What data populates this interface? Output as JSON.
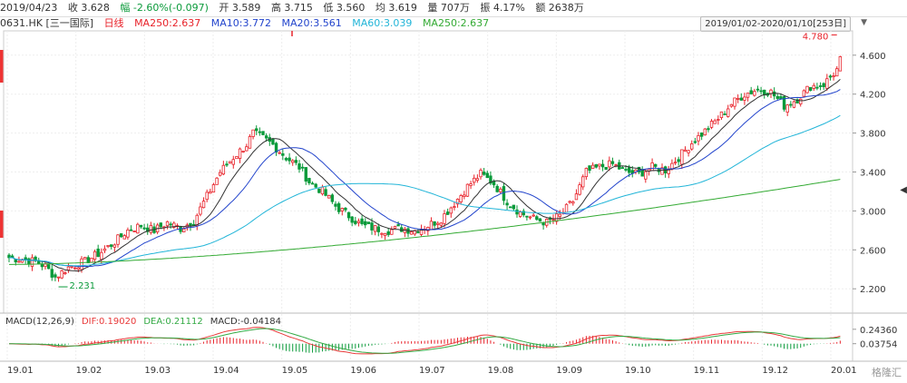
{
  "topbar": {
    "date": "2019/04/23",
    "close": "收 3.628",
    "change": "幅 -2.60%(-0.097)",
    "open": "开 3.589",
    "high": "高 3.715",
    "low": "低 3.560",
    "avg": "均 3.619",
    "volume": "量 707万",
    "amplitude": "振 4.17%",
    "turnover": "额 2638万"
  },
  "legend": {
    "code": "0631.HK [三一国际]",
    "period": "日线",
    "ma250a": "MA250:2.637",
    "ma10": "MA10:3.772",
    "ma20": "MA20:3.561",
    "ma60": "MA60:3.039",
    "ma250": "MA250:2.637"
  },
  "range": "2019/01/02-2020/01/10[253日]",
  "macd_legend": {
    "name": "MACD(12,26,9)",
    "dif": "DIF:0.19020",
    "dea": "DEA:0.21112",
    "macd": "MACD:-0.04184"
  },
  "watermark": "格隆汇",
  "colors": {
    "up": "#e8222a",
    "down": "#0a9a3a",
    "ma10": "#333333",
    "ma20": "#2244cc",
    "ma60": "#22b5d8",
    "ma250": "#33aa33",
    "dif": "#e83a3a",
    "dea": "#33aa44"
  },
  "chart_data": {
    "type": "candlestick",
    "ylim": [
      1.95,
      4.85
    ],
    "y_ticks": [
      "4.600",
      "4.200",
      "3.800",
      "3.400",
      "3.000",
      "2.600",
      "2.200"
    ],
    "x_ticks": [
      "19.01",
      "19.02",
      "19.03",
      "19.04",
      "19.05",
      "19.06",
      "19.07",
      "19.08",
      "19.09",
      "19.10",
      "19.11",
      "19.12",
      "20.01"
    ],
    "annotations": {
      "high": "4.780",
      "low": "2.231"
    },
    "close_path": [
      [
        0,
        2.52
      ],
      [
        4,
        2.5
      ],
      [
        8,
        2.48
      ],
      [
        11,
        2.43
      ],
      [
        14,
        2.32
      ],
      [
        18,
        2.42
      ],
      [
        23,
        2.48
      ],
      [
        28,
        2.58
      ],
      [
        32,
        2.68
      ],
      [
        36,
        2.8
      ],
      [
        40,
        2.85
      ],
      [
        44,
        2.8
      ],
      [
        48,
        2.88
      ],
      [
        52,
        2.82
      ],
      [
        56,
        2.9
      ],
      [
        60,
        3.15
      ],
      [
        64,
        3.4
      ],
      [
        68,
        3.55
      ],
      [
        72,
        3.68
      ],
      [
        74,
        3.8
      ],
      [
        77,
        3.75
      ],
      [
        80,
        3.68
      ],
      [
        84,
        3.55
      ],
      [
        88,
        3.45
      ],
      [
        91,
        3.3
      ],
      [
        95,
        3.2
      ],
      [
        99,
        3.05
      ],
      [
        103,
        2.95
      ],
      [
        107,
        2.85
      ],
      [
        111,
        2.82
      ],
      [
        115,
        2.8
      ],
      [
        119,
        2.82
      ],
      [
        123,
        2.8
      ],
      [
        127,
        2.85
      ],
      [
        131,
        2.92
      ],
      [
        135,
        3.08
      ],
      [
        139,
        3.25
      ],
      [
        143,
        3.38
      ],
      [
        147,
        3.28
      ],
      [
        151,
        3.1
      ],
      [
        155,
        2.98
      ],
      [
        159,
        2.92
      ],
      [
        163,
        2.88
      ],
      [
        167,
        2.95
      ],
      [
        171,
        3.1
      ],
      [
        175,
        3.4
      ],
      [
        179,
        3.45
      ],
      [
        183,
        3.48
      ],
      [
        187,
        3.4
      ],
      [
        191,
        3.38
      ],
      [
        195,
        3.45
      ],
      [
        199,
        3.42
      ],
      [
        203,
        3.55
      ],
      [
        207,
        3.7
      ],
      [
        211,
        3.82
      ],
      [
        215,
        3.95
      ],
      [
        219,
        4.1
      ],
      [
        223,
        4.2
      ],
      [
        227,
        4.25
      ],
      [
        231,
        4.22
      ],
      [
        235,
        4.08
      ],
      [
        239,
        4.15
      ],
      [
        243,
        4.28
      ],
      [
        247,
        4.3
      ],
      [
        251,
        4.45
      ],
      [
        253,
        4.65
      ]
    ],
    "macd": {
      "ylim": [
        -0.2,
        0.28
      ],
      "y_ticks": [
        "0.24360",
        "0.03754"
      ]
    }
  }
}
